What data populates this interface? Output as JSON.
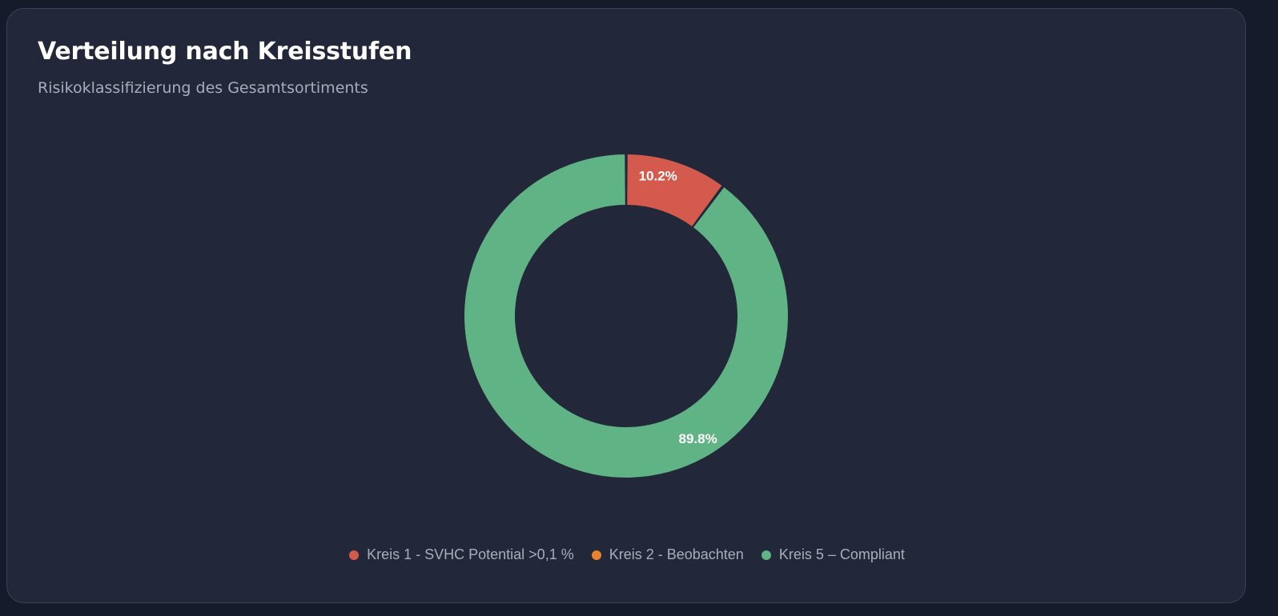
{
  "card": {
    "title": "Verteilung nach Kreisstufen",
    "subtitle": "Risikoklassifizierung des Gesamtsortiments"
  },
  "chart_data": {
    "type": "pie",
    "title": "Verteilung nach Kreisstufen",
    "subtitle": "Risikoklassifizierung des Gesamtsortiments",
    "legend_position": "bottom",
    "slices": [
      {
        "name": "Kreis 1 - SVHC Potential >0,1 %",
        "value": 10.2,
        "label": "10.2%",
        "color": "#d45a4d"
      },
      {
        "name": "Kreis 2 - Beobachten",
        "value": 0,
        "label": "",
        "color": "#e8822e"
      },
      {
        "name": "Kreis 5 – Compliant",
        "value": 89.8,
        "label": "89.8%",
        "color": "#60b385"
      }
    ]
  },
  "colors": {
    "background": "#151b2b",
    "card": "#222839",
    "title": "#ffffff",
    "muted": "#a6adbb"
  }
}
